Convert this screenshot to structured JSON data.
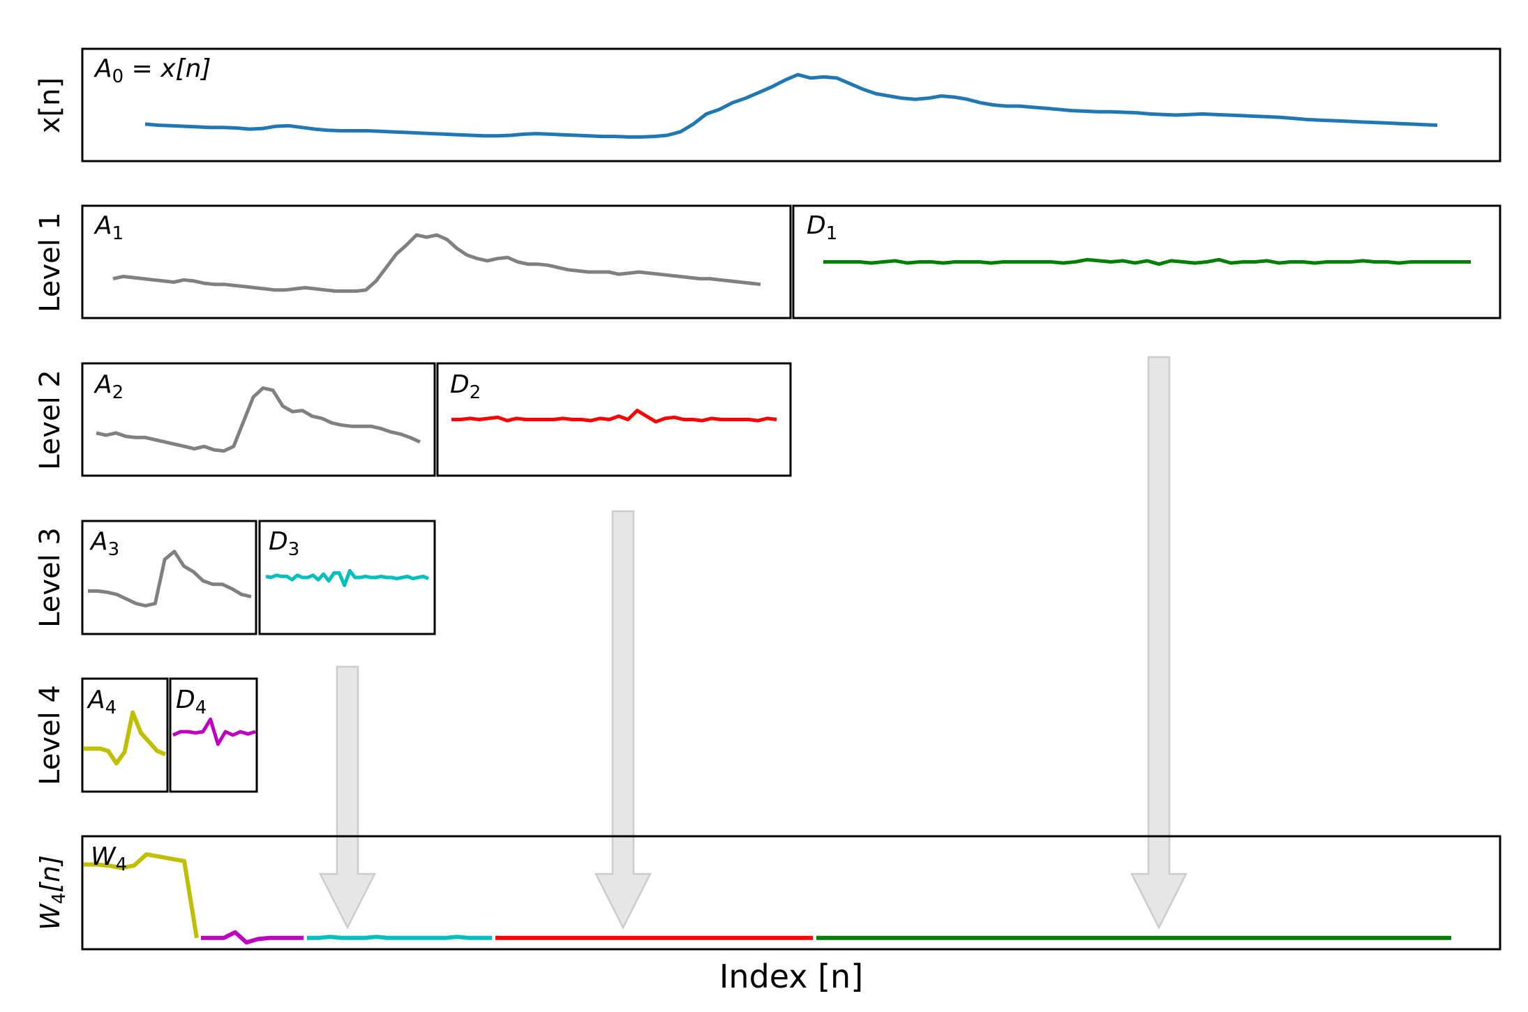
{
  "figure": {
    "xlabel": "Index [n]",
    "row_labels": [
      "x[n]",
      "Level 1",
      "Level 2",
      "Level 3",
      "Level 4"
    ],
    "w_row_label": {
      "main": "W",
      "sub": "4",
      "tail": "[n]"
    }
  },
  "panel_labels": {
    "a0": {
      "main": "A",
      "sub": "0",
      "rest": " = x[n]"
    },
    "a1": {
      "main": "A",
      "sub": "1"
    },
    "d1": {
      "main": "D",
      "sub": "1"
    },
    "a2": {
      "main": "A",
      "sub": "2"
    },
    "d2": {
      "main": "D",
      "sub": "2"
    },
    "a3": {
      "main": "A",
      "sub": "3"
    },
    "d3": {
      "main": "D",
      "sub": "3"
    },
    "a4": {
      "main": "A",
      "sub": "4"
    },
    "d4": {
      "main": "D",
      "sub": "4"
    },
    "w4": {
      "main": "W",
      "sub": "4"
    }
  },
  "colors": {
    "a0": "#1f77b4",
    "approx": "#808080",
    "d1": "#008000",
    "d2": "#ff0000",
    "d3": "#00bfbf",
    "a4": "#bfbf00",
    "d4": "#bf00bf",
    "arrow_fill": "#e6e6e6",
    "arrow_stroke": "#cccccc"
  },
  "chart_data": {
    "type": "line",
    "ylim": [
      0,
      1
    ],
    "grid": false,
    "panels": [
      {
        "id": "a0",
        "role": "original signal x[n]",
        "values": [
          0.33,
          0.32,
          0.315,
          0.31,
          0.305,
          0.3,
          0.3,
          0.295,
          0.285,
          0.29,
          0.31,
          0.315,
          0.3,
          0.285,
          0.275,
          0.27,
          0.27,
          0.27,
          0.265,
          0.26,
          0.255,
          0.25,
          0.245,
          0.24,
          0.235,
          0.23,
          0.225,
          0.225,
          0.23,
          0.24,
          0.245,
          0.24,
          0.235,
          0.23,
          0.225,
          0.22,
          0.22,
          0.215,
          0.215,
          0.22,
          0.23,
          0.26,
          0.33,
          0.42,
          0.46,
          0.52,
          0.56,
          0.61,
          0.66,
          0.72,
          0.77,
          0.74,
          0.75,
          0.74,
          0.69,
          0.64,
          0.6,
          0.58,
          0.56,
          0.55,
          0.56,
          0.58,
          0.57,
          0.55,
          0.52,
          0.5,
          0.49,
          0.49,
          0.48,
          0.47,
          0.46,
          0.45,
          0.445,
          0.44,
          0.44,
          0.435,
          0.43,
          0.42,
          0.415,
          0.41,
          0.415,
          0.42,
          0.415,
          0.41,
          0.405,
          0.4,
          0.395,
          0.39,
          0.38,
          0.37,
          0.365,
          0.36,
          0.355,
          0.35,
          0.345,
          0.34,
          0.335,
          0.33,
          0.325,
          0.32
        ]
      },
      {
        "id": "a1",
        "role": "approximation level 1",
        "values": [
          0.35,
          0.37,
          0.36,
          0.35,
          0.34,
          0.33,
          0.32,
          0.34,
          0.33,
          0.31,
          0.3,
          0.3,
          0.29,
          0.28,
          0.27,
          0.26,
          0.25,
          0.25,
          0.26,
          0.27,
          0.26,
          0.25,
          0.24,
          0.24,
          0.24,
          0.25,
          0.33,
          0.45,
          0.57,
          0.65,
          0.74,
          0.72,
          0.74,
          0.7,
          0.62,
          0.56,
          0.53,
          0.51,
          0.53,
          0.54,
          0.5,
          0.48,
          0.48,
          0.47,
          0.45,
          0.43,
          0.42,
          0.41,
          0.41,
          0.41,
          0.39,
          0.4,
          0.41,
          0.4,
          0.39,
          0.38,
          0.37,
          0.36,
          0.35,
          0.35,
          0.34,
          0.33,
          0.32,
          0.31,
          0.3
        ]
      },
      {
        "id": "d1",
        "role": "detail level 1",
        "values": [
          0.5,
          0.5,
          0.5,
          0.5,
          0.49,
          0.5,
          0.51,
          0.49,
          0.5,
          0.5,
          0.49,
          0.5,
          0.5,
          0.5,
          0.49,
          0.5,
          0.5,
          0.5,
          0.5,
          0.5,
          0.49,
          0.5,
          0.52,
          0.51,
          0.5,
          0.51,
          0.49,
          0.51,
          0.48,
          0.51,
          0.5,
          0.49,
          0.5,
          0.52,
          0.49,
          0.5,
          0.5,
          0.51,
          0.49,
          0.5,
          0.5,
          0.49,
          0.5,
          0.5,
          0.5,
          0.51,
          0.5,
          0.5,
          0.49,
          0.5,
          0.5,
          0.5,
          0.5,
          0.5,
          0.5
        ]
      },
      {
        "id": "a2",
        "role": "approximation level 2",
        "values": [
          0.38,
          0.36,
          0.38,
          0.35,
          0.34,
          0.34,
          0.32,
          0.3,
          0.28,
          0.26,
          0.24,
          0.26,
          0.23,
          0.22,
          0.26,
          0.48,
          0.7,
          0.78,
          0.76,
          0.62,
          0.57,
          0.58,
          0.53,
          0.51,
          0.47,
          0.45,
          0.44,
          0.44,
          0.44,
          0.42,
          0.39,
          0.37,
          0.34,
          0.3
        ]
      },
      {
        "id": "d2",
        "role": "detail level 2",
        "values": [
          0.5,
          0.5,
          0.51,
          0.5,
          0.51,
          0.52,
          0.49,
          0.51,
          0.5,
          0.5,
          0.5,
          0.5,
          0.51,
          0.5,
          0.5,
          0.49,
          0.51,
          0.5,
          0.53,
          0.5,
          0.58,
          0.53,
          0.48,
          0.51,
          0.52,
          0.5,
          0.5,
          0.49,
          0.51,
          0.5,
          0.5,
          0.5,
          0.5,
          0.49,
          0.51,
          0.5
        ]
      },
      {
        "id": "a3",
        "role": "approximation level 3",
        "values": [
          0.38,
          0.38,
          0.37,
          0.35,
          0.31,
          0.27,
          0.25,
          0.27,
          0.66,
          0.73,
          0.6,
          0.55,
          0.47,
          0.44,
          0.44,
          0.4,
          0.35,
          0.33
        ]
      },
      {
        "id": "d3",
        "role": "detail level 3",
        "values": [
          0.51,
          0.5,
          0.52,
          0.51,
          0.51,
          0.48,
          0.52,
          0.5,
          0.5,
          0.52,
          0.48,
          0.53,
          0.47,
          0.54,
          0.54,
          0.43,
          0.56,
          0.5,
          0.5,
          0.51,
          0.5,
          0.5,
          0.51,
          0.5,
          0.5,
          0.49,
          0.5,
          0.51,
          0.49,
          0.5,
          0.51,
          0.49
        ]
      },
      {
        "id": "a4",
        "role": "approximation level 4",
        "values": [
          0.38,
          0.38,
          0.38,
          0.36,
          0.25,
          0.35,
          0.7,
          0.52,
          0.44,
          0.36,
          0.33
        ]
      },
      {
        "id": "d4",
        "role": "detail level 4",
        "values": [
          0.5,
          0.53,
          0.53,
          0.52,
          0.53,
          0.64,
          0.42,
          0.53,
          0.5,
          0.53,
          0.51,
          0.53
        ]
      },
      {
        "id": "w4",
        "role": "concatenated coefficients W4[n]",
        "segments": [
          {
            "from": "a4",
            "values": [
              0.75,
              0.75,
              0.74,
              0.72,
              0.74,
              0.84,
              0.82,
              0.8,
              0.78,
              0.1
            ]
          },
          {
            "from": "d4",
            "values": [
              0.1,
              0.1,
              0.1,
              0.15,
              0.06,
              0.09,
              0.1,
              0.1,
              0.1,
              0.1
            ]
          },
          {
            "from": "d3",
            "values": [
              0.1,
              0.1,
              0.11,
              0.1,
              0.1,
              0.1,
              0.11,
              0.1,
              0.1,
              0.1,
              0.1,
              0.1,
              0.1,
              0.11,
              0.1,
              0.1,
              0.1
            ]
          },
          {
            "from": "d2",
            "values": [
              0.1,
              0.1,
              0.1,
              0.1,
              0.1,
              0.1,
              0.1,
              0.1,
              0.1,
              0.1,
              0.1,
              0.1,
              0.1,
              0.1,
              0.1,
              0.1,
              0.1,
              0.1,
              0.1,
              0.1
            ]
          },
          {
            "from": "d1",
            "values": [
              0.1,
              0.1,
              0.1,
              0.1,
              0.1,
              0.1,
              0.1,
              0.1,
              0.1,
              0.1,
              0.1,
              0.1,
              0.1,
              0.1,
              0.1,
              0.1,
              0.1,
              0.1,
              0.1,
              0.1,
              0.1,
              0.1,
              0.1,
              0.1,
              0.1,
              0.1,
              0.1,
              0.1,
              0.1,
              0.1
            ]
          }
        ]
      }
    ]
  }
}
